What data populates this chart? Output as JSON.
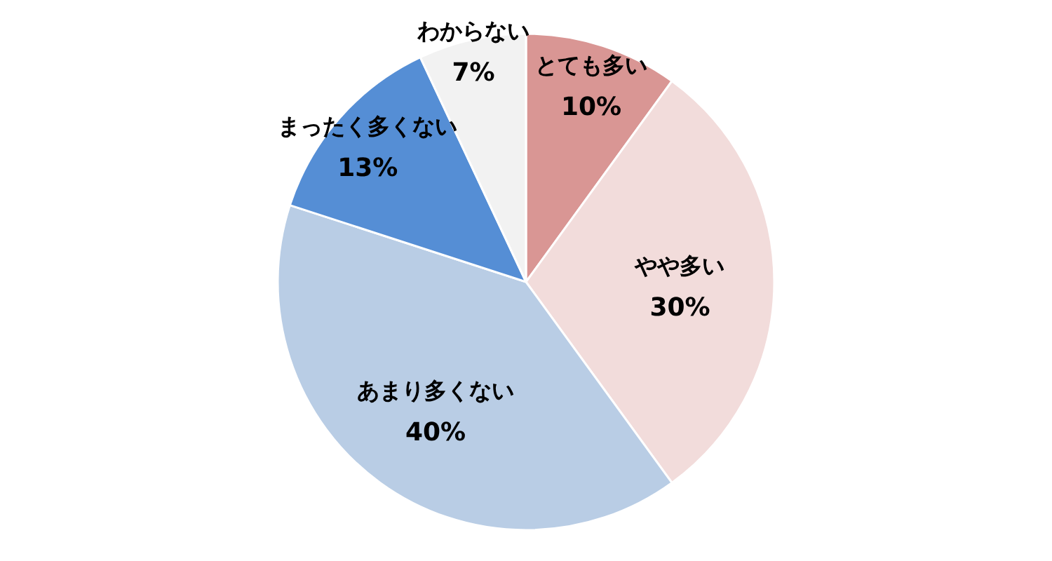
{
  "chart_data": {
    "type": "pie",
    "categories": [
      "とても多い",
      "やや多い",
      "あまり多くない",
      "まったく多くない",
      "わからない"
    ],
    "values": [
      10,
      30,
      40,
      13,
      7
    ],
    "colors": [
      "#d99694",
      "#f2dcdb",
      "#b9cde5",
      "#558ed5",
      "#f2f2f2"
    ],
    "value_labels": [
      "10%",
      "30%",
      "40%",
      "13%",
      "7%"
    ]
  }
}
